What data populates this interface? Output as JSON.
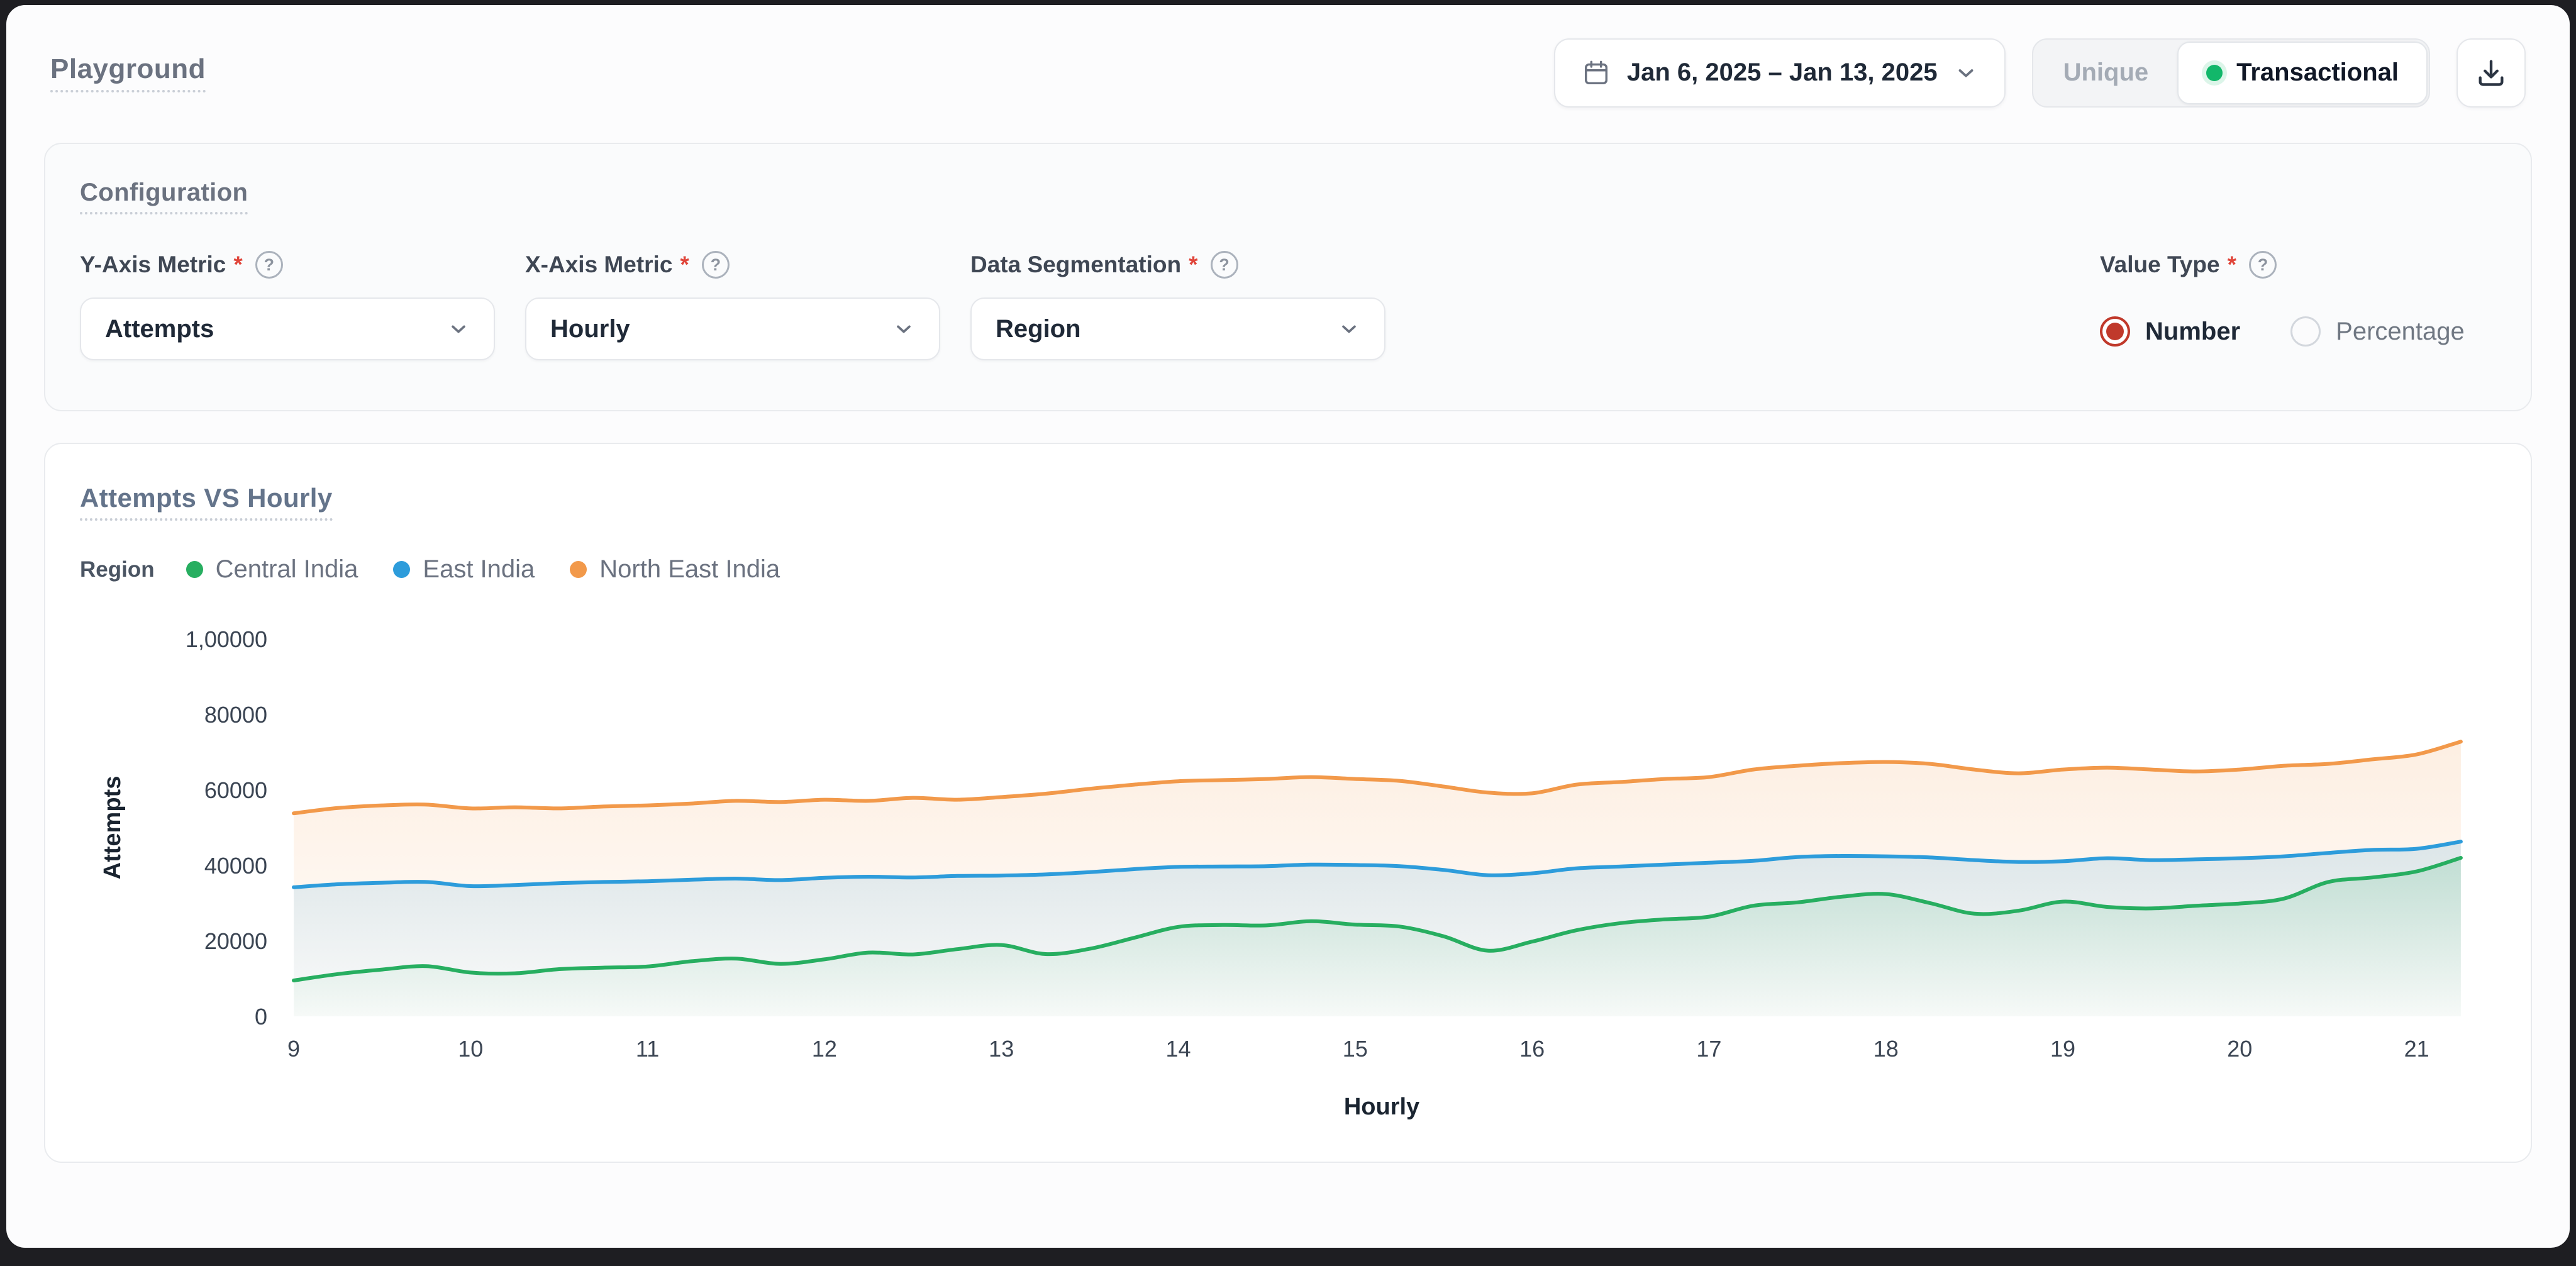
{
  "header": {
    "title": "Playground",
    "date_range": "Jan 6, 2025 – Jan 13, 2025",
    "mode_toggle": {
      "options": [
        "Unique",
        "Transactional"
      ],
      "selected": "Transactional",
      "active_dot_color": "#12B76A"
    }
  },
  "configuration": {
    "title": "Configuration",
    "fields": [
      {
        "label": "Y-Axis Metric",
        "required": true,
        "value": "Attempts"
      },
      {
        "label": "X-Axis Metric",
        "required": true,
        "value": "Hourly"
      },
      {
        "label": "Data Segmentation",
        "required": true,
        "value": "Region"
      }
    ],
    "value_type": {
      "label": "Value Type",
      "required": true,
      "options": [
        "Number",
        "Percentage"
      ],
      "selected": "Number",
      "accent": "#C0392B"
    }
  },
  "chart": {
    "title": "Attempts VS Hourly",
    "legend_label": "Region"
  },
  "chart_data": {
    "type": "line",
    "title": "Attempts VS Hourly",
    "xlabel": "Hourly",
    "ylabel": "Attempts",
    "xlim": [
      9,
      21.3
    ],
    "ylim": [
      0,
      100000
    ],
    "x_ticks": [
      9,
      10,
      11,
      12,
      13,
      14,
      15,
      16,
      17,
      18,
      19,
      20,
      21
    ],
    "y_ticks": [
      0,
      20000,
      40000,
      60000,
      80000,
      100000
    ],
    "y_tick_labels": [
      "0",
      "20000",
      "40000",
      "60000",
      "80000",
      "1,00000"
    ],
    "grid": false,
    "legend_position": "top-left",
    "smooth": true,
    "x": [
      9,
      9.25,
      9.5,
      9.75,
      10,
      10.25,
      10.5,
      10.75,
      11,
      11.25,
      11.5,
      11.75,
      12,
      12.25,
      12.5,
      12.75,
      13,
      13.25,
      13.5,
      13.75,
      14,
      14.25,
      14.5,
      14.75,
      15,
      15.25,
      15.5,
      15.75,
      16,
      16.25,
      16.5,
      16.75,
      17,
      17.25,
      17.5,
      17.75,
      18,
      18.25,
      18.5,
      18.75,
      19,
      19.25,
      19.5,
      19.75,
      20,
      20.25,
      20.5,
      20.75,
      21,
      21.25
    ],
    "series": [
      {
        "name": "Central India",
        "color": "#27AE60",
        "values": [
          9500,
          11200,
          12400,
          13300,
          11600,
          11400,
          12500,
          12900,
          13200,
          14600,
          15300,
          13900,
          15100,
          16900,
          16400,
          17800,
          18900,
          16500,
          17900,
          20800,
          23700,
          24200,
          24100,
          25200,
          24300,
          23800,
          21200,
          17400,
          19800,
          22800,
          24700,
          25700,
          26400,
          29300,
          30200,
          31700,
          32400,
          30000,
          27200,
          28000,
          30400,
          29000,
          28600,
          29300,
          29900,
          31200,
          35600,
          36800,
          38400,
          42000
        ]
      },
      {
        "name": "East India",
        "color": "#2D9CDB",
        "values": [
          34200,
          35000,
          35400,
          35600,
          34500,
          34800,
          35300,
          35600,
          35800,
          36200,
          36500,
          36100,
          36700,
          37000,
          36800,
          37200,
          37300,
          37600,
          38200,
          39000,
          39600,
          39700,
          39800,
          40200,
          40100,
          39800,
          38800,
          37400,
          37900,
          39200,
          39700,
          40200,
          40700,
          41200,
          42200,
          42500,
          42400,
          42100,
          41400,
          40900,
          41100,
          41900,
          41400,
          41600,
          41900,
          42400,
          43300,
          44100,
          44400,
          46300
        ]
      },
      {
        "name": "North East India",
        "color": "#F2994A",
        "values": [
          53800,
          55200,
          55900,
          56100,
          55100,
          55400,
          55100,
          55600,
          55900,
          56400,
          57100,
          56800,
          57400,
          57100,
          57900,
          57400,
          58100,
          59000,
          60300,
          61400,
          62300,
          62600,
          62900,
          63400,
          62900,
          62400,
          60900,
          59300,
          59100,
          61400,
          62100,
          62900,
          63400,
          65400,
          66400,
          67100,
          67400,
          66900,
          65400,
          64400,
          65400,
          65900,
          65400,
          64900,
          65400,
          66400,
          66900,
          68100,
          69400,
          72800
        ]
      }
    ]
  }
}
